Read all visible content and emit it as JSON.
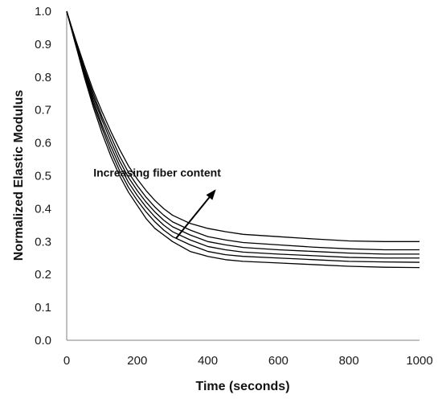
{
  "chart_data": {
    "type": "line",
    "title": "",
    "xlabel": "Time (seconds)",
    "ylabel": "Normalized Elastic Modulus",
    "xlim": [
      0,
      1000
    ],
    "ylim": [
      0.0,
      1.0
    ],
    "x_ticks": [
      "0",
      "200",
      "400",
      "600",
      "800",
      "1000"
    ],
    "y_ticks": [
      "0.0",
      "0.1",
      "0.2",
      "0.3",
      "0.4",
      "0.5",
      "0.6",
      "0.7",
      "0.8",
      "0.9",
      "1.0"
    ],
    "grid": false,
    "legend": "none",
    "x": [
      0,
      25,
      50,
      75,
      100,
      125,
      150,
      175,
      200,
      225,
      250,
      275,
      300,
      350,
      400,
      450,
      500,
      600,
      700,
      800,
      900,
      1000
    ],
    "series": [
      {
        "values": [
          1.0,
          0.9,
          0.8,
          0.71,
          0.63,
          0.56,
          0.5,
          0.45,
          0.41,
          0.37,
          0.34,
          0.32,
          0.3,
          0.27,
          0.255,
          0.245,
          0.24,
          0.235,
          0.23,
          0.225,
          0.222,
          0.221
        ]
      },
      {
        "values": [
          1.0,
          0.9,
          0.81,
          0.72,
          0.645,
          0.575,
          0.515,
          0.465,
          0.425,
          0.39,
          0.36,
          0.335,
          0.315,
          0.29,
          0.27,
          0.26,
          0.255,
          0.25,
          0.245,
          0.24,
          0.238,
          0.237
        ]
      },
      {
        "values": [
          1.0,
          0.905,
          0.815,
          0.73,
          0.655,
          0.59,
          0.53,
          0.48,
          0.44,
          0.405,
          0.375,
          0.35,
          0.33,
          0.305,
          0.285,
          0.275,
          0.268,
          0.262,
          0.257,
          0.252,
          0.25,
          0.25
        ]
      },
      {
        "values": [
          1.0,
          0.91,
          0.82,
          0.74,
          0.67,
          0.605,
          0.545,
          0.495,
          0.455,
          0.42,
          0.39,
          0.365,
          0.345,
          0.32,
          0.3,
          0.29,
          0.282,
          0.275,
          0.27,
          0.265,
          0.262,
          0.262
        ]
      },
      {
        "values": [
          1.0,
          0.91,
          0.825,
          0.75,
          0.68,
          0.62,
          0.56,
          0.51,
          0.47,
          0.435,
          0.405,
          0.38,
          0.36,
          0.335,
          0.315,
          0.305,
          0.297,
          0.29,
          0.283,
          0.278,
          0.275,
          0.275
        ]
      },
      {
        "values": [
          1.0,
          0.915,
          0.835,
          0.76,
          0.695,
          0.635,
          0.58,
          0.53,
          0.49,
          0.455,
          0.425,
          0.4,
          0.38,
          0.355,
          0.34,
          0.33,
          0.322,
          0.315,
          0.308,
          0.302,
          0.3,
          0.3
        ]
      }
    ],
    "annotations": [
      {
        "text": "Increasing fiber content",
        "x": 390,
        "y": 0.51
      }
    ],
    "arrow": {
      "from": [
        310,
        0.31
      ],
      "to": [
        420,
        0.455
      ]
    }
  }
}
